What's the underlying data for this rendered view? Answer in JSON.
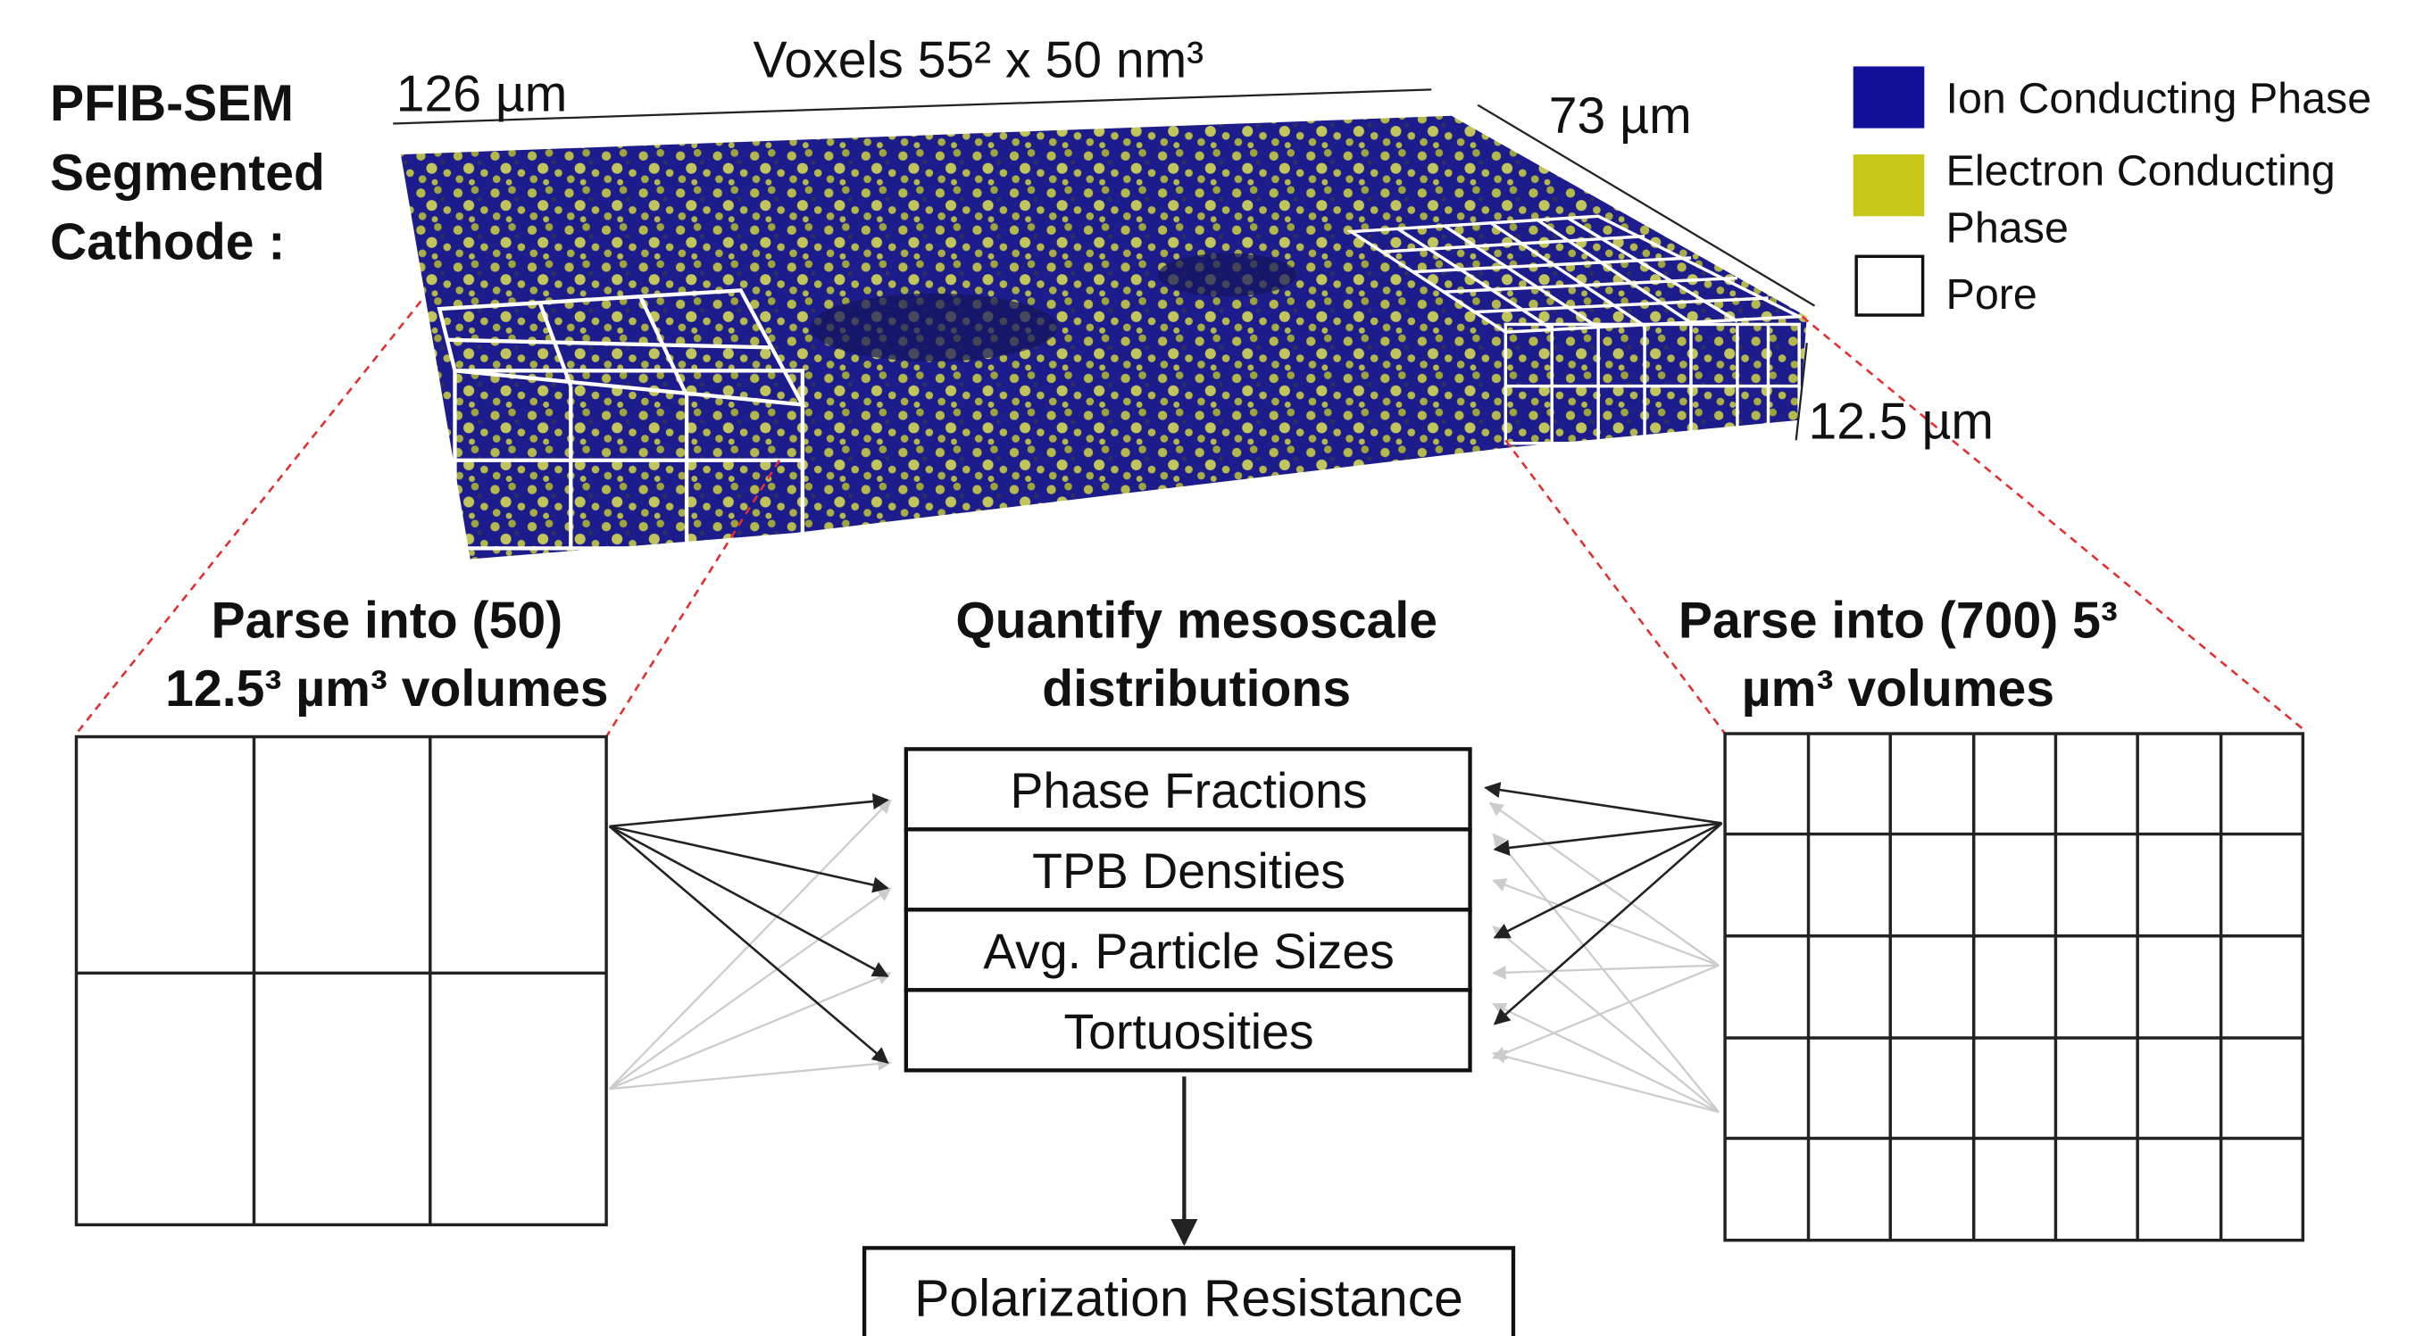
{
  "header": {
    "lines": [
      "PFIB-SEM",
      "Segmented",
      "Cathode :"
    ]
  },
  "dimensions": {
    "length": "126 µm",
    "voxels": "Voxels 55² x 50 nm³",
    "width": "73 µm",
    "thickness": "12.5 µm"
  },
  "legend": {
    "items": [
      {
        "lines": [
          "Ion Conducting Phase"
        ]
      },
      {
        "lines": [
          "Electron Conducting",
          "Phase"
        ]
      },
      {
        "lines": [
          "Pore"
        ]
      }
    ]
  },
  "left_panel": {
    "title_lines": [
      "Parse into (50)",
      "12.5³ µm³ volumes"
    ]
  },
  "center_panel": {
    "title_lines": [
      "Quantify mesoscale",
      "distributions"
    ],
    "metrics": [
      "Phase Fractions",
      "TPB Densities",
      "Avg. Particle Sizes",
      "Tortuosities"
    ],
    "output": "Polarization Resistance"
  },
  "right_panel": {
    "title_lines": [
      "Parse into (700) 5³",
      "µm³ volumes"
    ]
  }
}
